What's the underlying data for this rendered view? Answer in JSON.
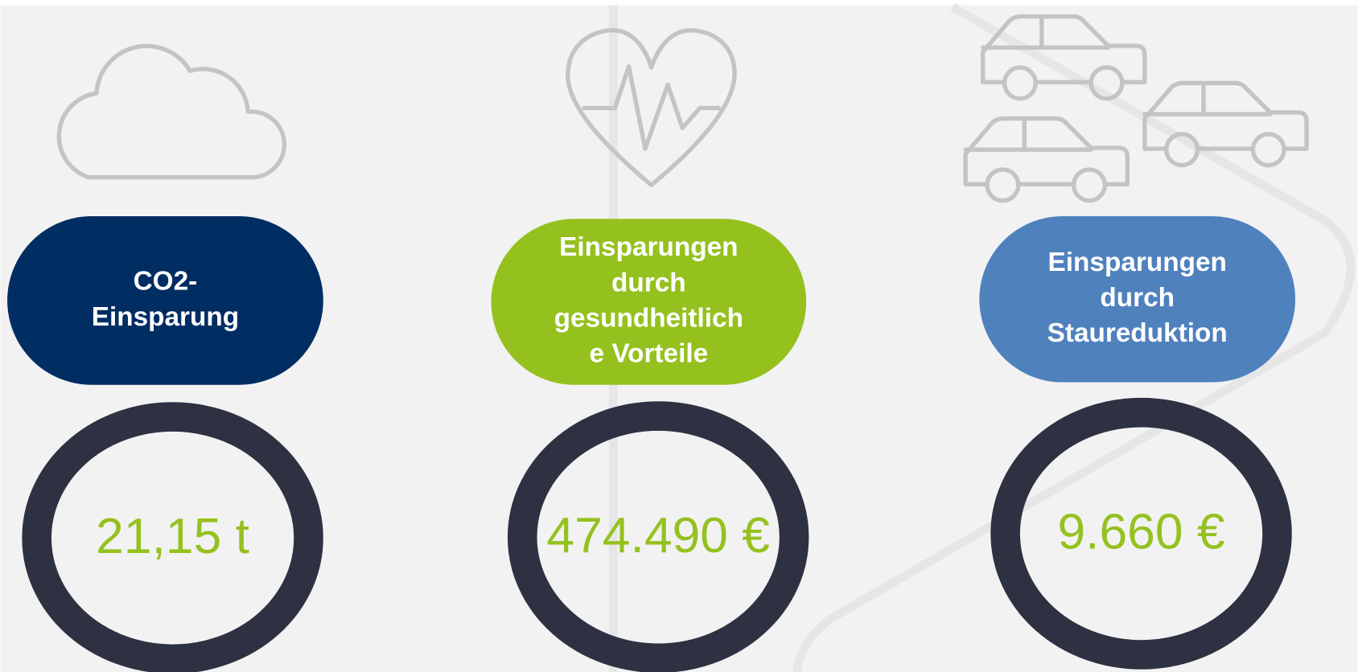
{
  "items": [
    {
      "label_lines": [
        "CO2-",
        "Einsparung"
      ],
      "value": "21,15 t"
    },
    {
      "label_lines": [
        "Einsparungen",
        "durch",
        "gesundheitlich",
        "e Vorteile"
      ],
      "value": "474.490 €"
    },
    {
      "label_lines": [
        "Einsparungen",
        "durch",
        "Staureduktion"
      ],
      "value": "9.660 €"
    }
  ]
}
